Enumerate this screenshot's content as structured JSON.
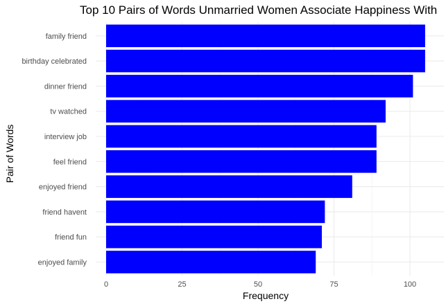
{
  "chart_data": {
    "type": "bar",
    "orientation": "horizontal",
    "title": "Top 10 Pairs of Words Unmarried Women Associate Happiness With",
    "xlabel": "Frequency",
    "ylabel": "Pair of Words",
    "categories": [
      "family friend",
      "birthday celebrated",
      "dinner friend",
      "tv watched",
      "interview job",
      "feel friend",
      "enjoyed friend",
      "friend havent",
      "friend fun",
      "enjoyed family"
    ],
    "values": [
      105,
      105,
      101,
      92,
      89,
      89,
      81,
      72,
      71,
      69
    ],
    "xlim": [
      0,
      110
    ],
    "xticks": [
      0,
      25,
      50,
      75,
      100
    ],
    "xtick_labels": [
      "0",
      "25",
      "50",
      "75",
      "100"
    ],
    "grid": true,
    "legend": "none",
    "bar_color": "#0000ff"
  }
}
